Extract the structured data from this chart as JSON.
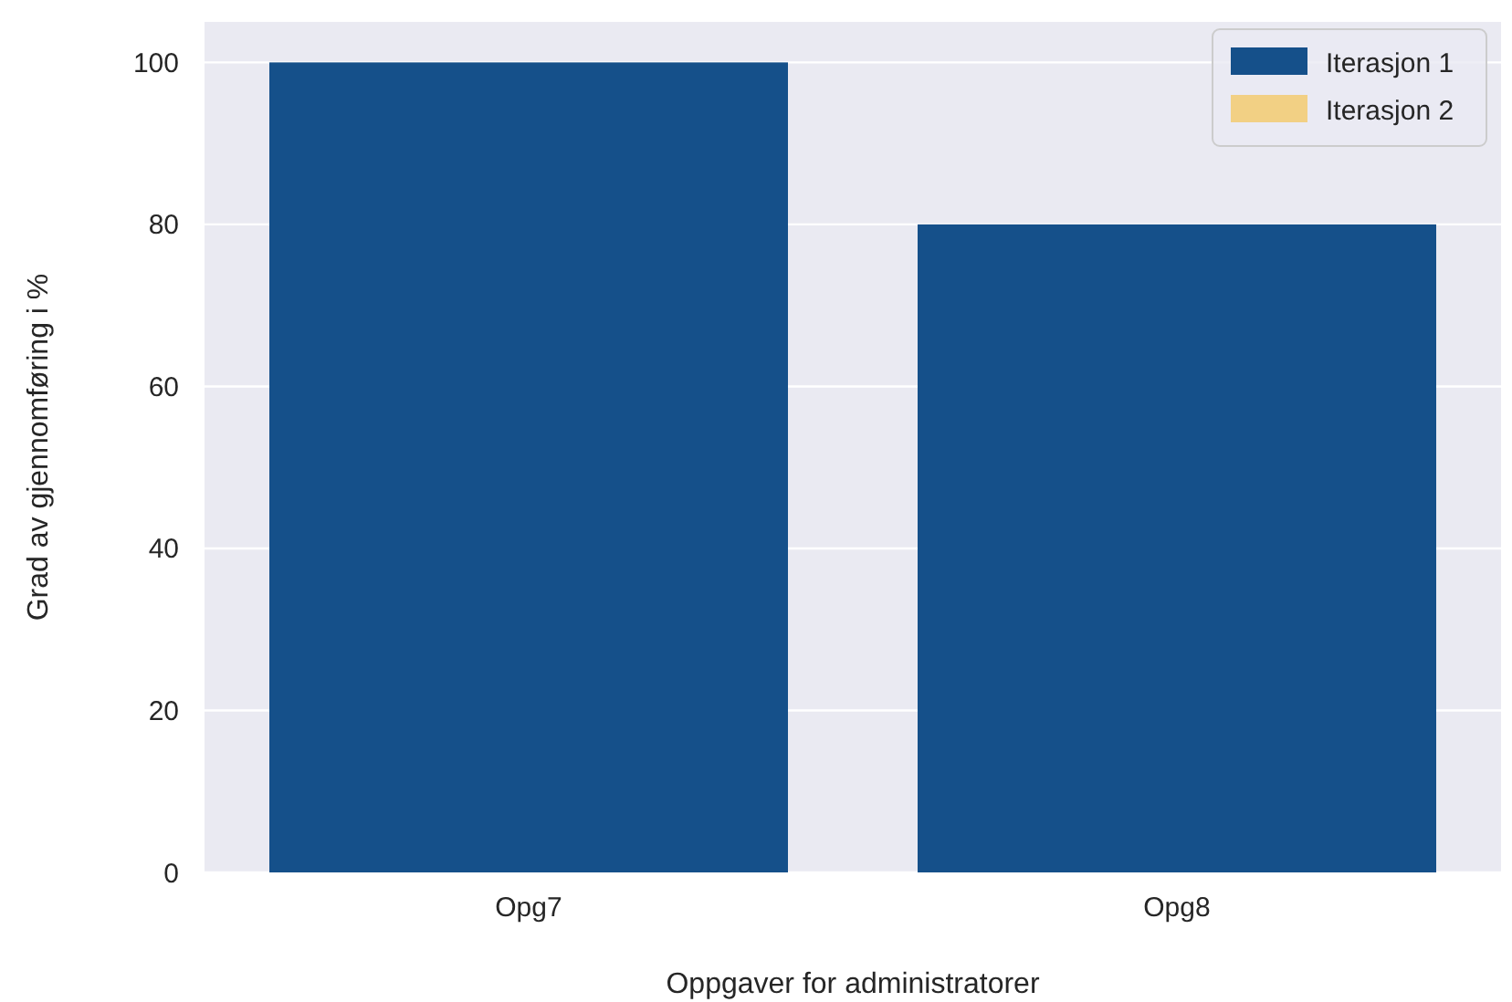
{
  "chart_data": {
    "type": "bar",
    "xlabel": "Oppgaver for administratorer",
    "ylabel": "Grad av gjennomføring i %",
    "categories": [
      "Opg7",
      "Opg8"
    ],
    "series": [
      {
        "name": "Iterasjon 1",
        "color": "#15508a",
        "values": [
          100,
          80
        ]
      },
      {
        "name": "Iterasjon 2",
        "color": "#f2d084",
        "values": [
          null,
          null
        ]
      }
    ],
    "ylim": [
      0,
      105
    ],
    "yticks": [
      0,
      20,
      40,
      60,
      80,
      100
    ],
    "grid": "y",
    "legend": "top right"
  }
}
